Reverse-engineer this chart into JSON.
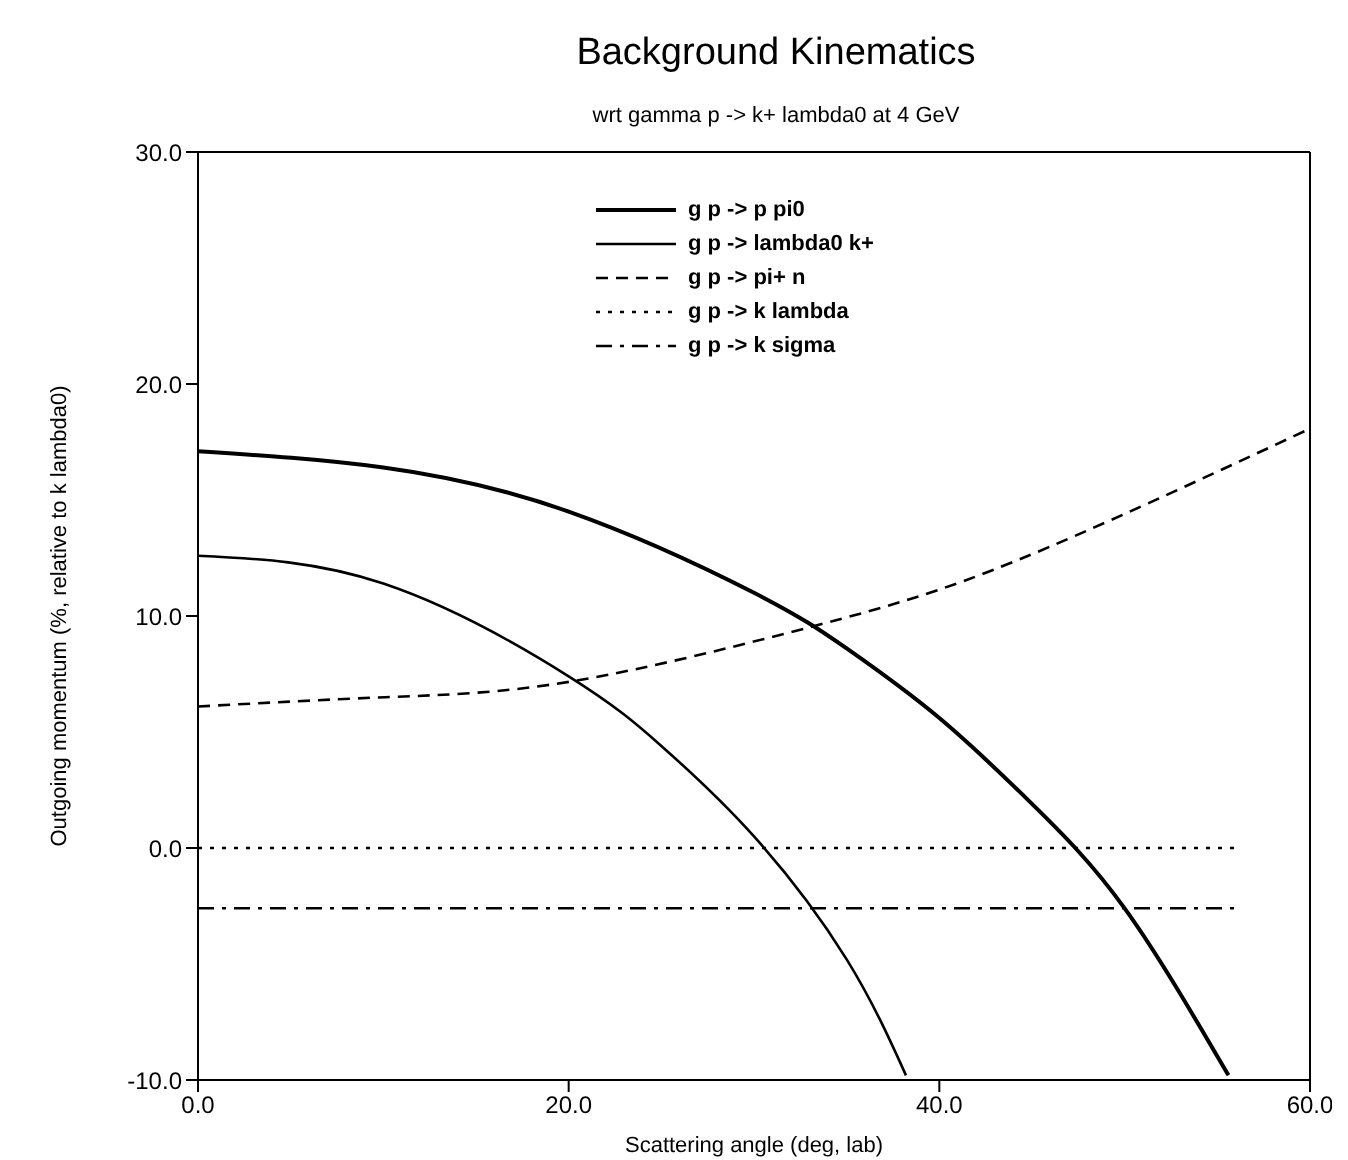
{
  "chart_data": {
    "type": "line",
    "title": "Background Kinematics",
    "subtitle": "wrt gamma p -> k+ lambda0 at 4 GeV",
    "xlabel": "Scattering angle (deg, lab)",
    "ylabel": "Outgoing momentum (%, relative to k lambda0)",
    "xlim": [
      0,
      60
    ],
    "ylim": [
      -10,
      30
    ],
    "xticks": [
      {
        "value": 0,
        "label": "0.0"
      },
      {
        "value": 20,
        "label": "20.0"
      },
      {
        "value": 40,
        "label": "40.0"
      },
      {
        "value": 60,
        "label": "60.0"
      }
    ],
    "yticks": [
      {
        "value": -10,
        "label": "-10.0"
      },
      {
        "value": 0,
        "label": "0.0"
      },
      {
        "value": 10,
        "label": "10.0"
      },
      {
        "value": 20,
        "label": "20.0"
      },
      {
        "value": 30,
        "label": "30.0"
      }
    ],
    "legend": "top",
    "marker": "none",
    "series": [
      {
        "name": "g p -> p pi0",
        "color": "#000000",
        "line_style": "solid",
        "x": [
          0,
          10,
          20,
          30,
          35,
          40,
          45,
          50,
          55.6
        ],
        "values": [
          17.1,
          16.4,
          14.5,
          11.0,
          8.6,
          5.6,
          1.9,
          -2.6,
          -9.8
        ]
      },
      {
        "name": "g p -> lambda0 k+",
        "color": "#000000",
        "line_style": "solid",
        "x": [
          0,
          10,
          20,
          25,
          30,
          35,
          38.2
        ],
        "values": [
          12.6,
          11.4,
          7.4,
          4.4,
          0.5,
          -4.8,
          -9.8
        ]
      },
      {
        "name": "g p -> pi+ n",
        "color": "#000000",
        "line_style": "dashed",
        "x": [
          0,
          10.1,
          20.3,
          33.4,
          44.2,
          59.8
        ],
        "values": [
          6.1,
          6.5,
          7.2,
          9.6,
          12.4,
          18.0
        ]
      },
      {
        "name": "g p -> k lambda",
        "color": "#000000",
        "line_style": "dotted",
        "x": [
          0,
          56
        ],
        "values": [
          0,
          0
        ]
      },
      {
        "name": "g p -> k sigma",
        "color": "#000000",
        "line_style": "dashdot",
        "x": [
          0,
          56
        ],
        "values": [
          -2.6,
          -2.6
        ]
      }
    ]
  }
}
